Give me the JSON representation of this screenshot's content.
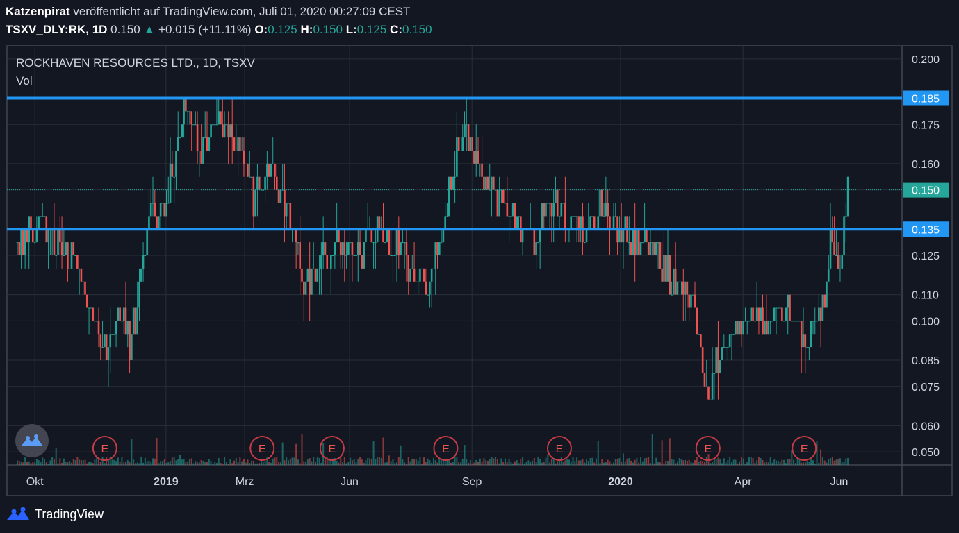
{
  "header": {
    "author": "Katzenpirat",
    "published": "veröffentlicht auf TradingView.com, Juli 01, 2020 00:27:09 CEST",
    "symbol": "TSXV_DLY:RK, 1D",
    "last": "0.150",
    "change": "+0.015 (+11.11%)",
    "o_label": "O:",
    "o": "0.125",
    "h_label": "H:",
    "h": "0.150",
    "l_label": "L:",
    "l": "0.125",
    "c_label": "C:",
    "c": "0.150"
  },
  "legend": {
    "title": "ROCKHAVEN RESOURCES LTD., 1D, TSXV",
    "vol": "Vol"
  },
  "footer": {
    "brand": "TradingView"
  },
  "colors": {
    "bg": "#131722",
    "up": "#26a69a",
    "down": "#ef5350",
    "hline": "#2196f3",
    "grid": "#2a2e39"
  },
  "chart_data": {
    "type": "candlestick",
    "ylim": [
      0.045,
      0.205
    ],
    "y_ticks": [
      "0.200",
      "0.185",
      "0.175",
      "0.160",
      "0.150",
      "0.135",
      "0.125",
      "0.110",
      "0.100",
      "0.085",
      "0.075",
      "0.060",
      "0.050"
    ],
    "x_ticks": [
      "Okt",
      "2019",
      "Mrz",
      "Jun",
      "Sep",
      "2020",
      "Apr",
      "Jun"
    ],
    "x_tick_bold": [
      false,
      true,
      false,
      false,
      false,
      true,
      false,
      false
    ],
    "horizontal_lines": [
      {
        "value": 0.185,
        "label": "0.185"
      },
      {
        "value": 0.135,
        "label": "0.135"
      }
    ],
    "last_price": {
      "value": 0.15,
      "label": "0.150"
    },
    "earnings_marker_label": "E",
    "earnings_markers_x": [
      0.1,
      0.28,
      0.36,
      0.49,
      0.62,
      0.79,
      0.9
    ],
    "price_path": [
      [
        0.0,
        0.13
      ],
      [
        0.03,
        0.135
      ],
      [
        0.06,
        0.125
      ],
      [
        0.09,
        0.1
      ],
      [
        0.1,
        0.088
      ],
      [
        0.12,
        0.105
      ],
      [
        0.13,
        0.09
      ],
      [
        0.15,
        0.14
      ],
      [
        0.17,
        0.145
      ],
      [
        0.19,
        0.18
      ],
      [
        0.21,
        0.165
      ],
      [
        0.23,
        0.175
      ],
      [
        0.25,
        0.17
      ],
      [
        0.27,
        0.145
      ],
      [
        0.29,
        0.16
      ],
      [
        0.31,
        0.14
      ],
      [
        0.33,
        0.11
      ],
      [
        0.35,
        0.125
      ],
      [
        0.37,
        0.13
      ],
      [
        0.39,
        0.125
      ],
      [
        0.41,
        0.135
      ],
      [
        0.43,
        0.13
      ],
      [
        0.45,
        0.12
      ],
      [
        0.47,
        0.115
      ],
      [
        0.49,
        0.14
      ],
      [
        0.51,
        0.175
      ],
      [
        0.53,
        0.16
      ],
      [
        0.55,
        0.145
      ],
      [
        0.57,
        0.14
      ],
      [
        0.59,
        0.13
      ],
      [
        0.61,
        0.145
      ],
      [
        0.63,
        0.14
      ],
      [
        0.65,
        0.135
      ],
      [
        0.67,
        0.145
      ],
      [
        0.69,
        0.135
      ],
      [
        0.71,
        0.13
      ],
      [
        0.73,
        0.125
      ],
      [
        0.75,
        0.115
      ],
      [
        0.77,
        0.11
      ],
      [
        0.78,
        0.09
      ],
      [
        0.79,
        0.07
      ],
      [
        0.8,
        0.085
      ],
      [
        0.82,
        0.095
      ],
      [
        0.84,
        0.105
      ],
      [
        0.86,
        0.1
      ],
      [
        0.88,
        0.105
      ],
      [
        0.9,
        0.095
      ],
      [
        0.92,
        0.1
      ],
      [
        0.93,
        0.13
      ],
      [
        0.94,
        0.12
      ],
      [
        0.95,
        0.15
      ]
    ]
  }
}
